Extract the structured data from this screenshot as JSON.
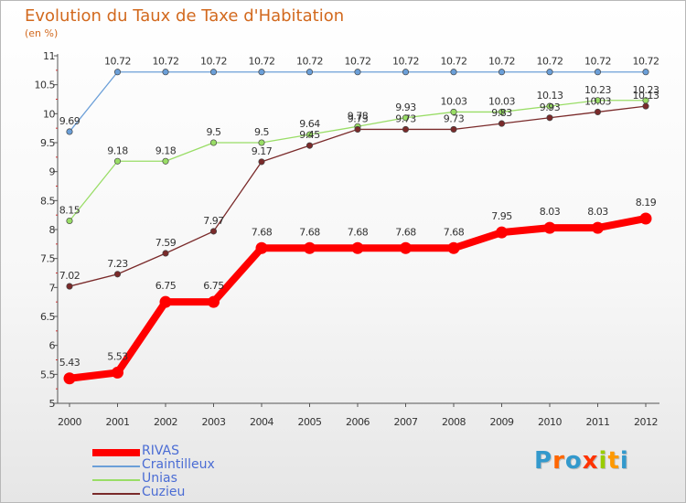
{
  "header": {
    "title": "Evolution du Taux de Taxe d'Habitation",
    "unit": "(en %)"
  },
  "logo": {
    "text": "Proxiti"
  },
  "colors": {
    "title": "#d2691e",
    "legend_text": "#4a6cd4",
    "axis": "#555555"
  },
  "chart_data": {
    "type": "line",
    "title": "Evolution du Taux de Taxe d'Habitation",
    "ylabel": "(en %)",
    "xlabel": "",
    "x": [
      "2000",
      "2001",
      "2002",
      "2003",
      "2004",
      "2005",
      "2006",
      "2007",
      "2008",
      "2009",
      "2010",
      "2011",
      "2012"
    ],
    "ylim": [
      5,
      11
    ],
    "yticks": [
      "5",
      "5.5",
      "6",
      "6.5",
      "7",
      "7.5",
      "8",
      "8.5",
      "9",
      "9.5",
      "10",
      "10.5",
      "11"
    ],
    "ytick_values": [
      5,
      5.5,
      6,
      6.5,
      7,
      7.5,
      8,
      8.5,
      9,
      9.5,
      10,
      10.5,
      11
    ],
    "grid": false,
    "legend_position": "bottom-left",
    "series": [
      {
        "name": "RIVAS",
        "color": "#ff0000",
        "values": [
          5.43,
          5.53,
          6.75,
          6.75,
          7.68,
          7.68,
          7.68,
          7.68,
          7.68,
          7.95,
          8.03,
          8.03,
          8.19
        ],
        "labels": [
          "5.43",
          "5.53",
          "6.75",
          "6.75",
          "7.68",
          "7.68",
          "7.68",
          "7.68",
          "7.68",
          "7.95",
          "8.03",
          "8.03",
          "8.19"
        ]
      },
      {
        "name": "Craintilleux",
        "color": "#6b9fd8",
        "values": [
          9.69,
          10.72,
          10.72,
          10.72,
          10.72,
          10.72,
          10.72,
          10.72,
          10.72,
          10.72,
          10.72,
          10.72,
          10.72
        ],
        "labels": [
          "9.69",
          "10.72",
          "10.72",
          "10.72",
          "10.72",
          "10.72",
          "10.72",
          "10.72",
          "10.72",
          "10.72",
          "10.72",
          "10.72",
          "10.72"
        ]
      },
      {
        "name": "Unias",
        "color": "#99dd66",
        "values": [
          8.15,
          9.18,
          9.18,
          9.5,
          9.5,
          9.64,
          9.78,
          9.93,
          10.03,
          10.03,
          10.13,
          10.23,
          10.23
        ],
        "labels": [
          "8.15",
          "9.18",
          "9.18",
          "9.5",
          "9.5",
          "9.64",
          "9.78",
          "9.93",
          "10.03",
          "10.03",
          "10.13",
          "10.23",
          "10.23"
        ]
      },
      {
        "name": "Cuzieu",
        "color": "#7a2a2a",
        "values": [
          7.02,
          7.23,
          7.59,
          7.97,
          9.17,
          9.45,
          9.73,
          9.73,
          9.73,
          9.83,
          9.93,
          10.03,
          10.13
        ],
        "labels": [
          "7.02",
          "7.23",
          "7.59",
          "7.97",
          "9.17",
          "9.45",
          "9.73",
          "9.73",
          "9.73",
          "9.83",
          "9.93",
          "10.03",
          "10.13"
        ]
      }
    ]
  }
}
